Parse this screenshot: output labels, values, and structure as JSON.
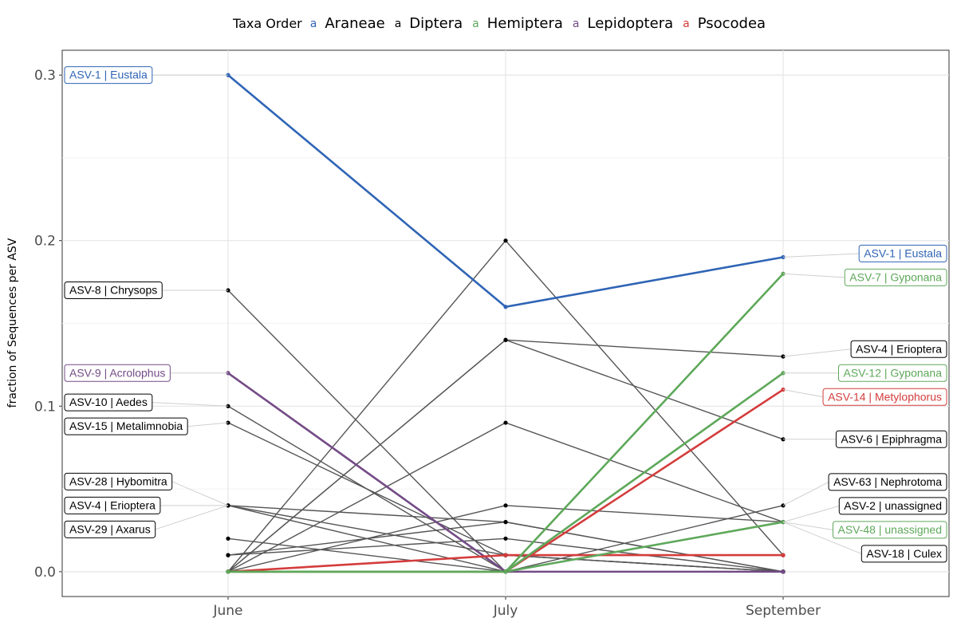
{
  "chart_data": {
    "type": "line",
    "x": [
      "June",
      "July",
      "September"
    ],
    "xlabel": "",
    "ylabel": "fraction of Sequences per ASV",
    "ylim": [
      -0.015,
      0.315
    ],
    "yticks": [
      0.0,
      0.1,
      0.2,
      0.3
    ],
    "ytick_labels": [
      "0.0",
      "0.1",
      "0.2",
      "0.3"
    ],
    "grid": true,
    "legend": {
      "title": "Taxa Order",
      "placement": "top",
      "key_glyph": "a",
      "entries": [
        {
          "name": "Araneae",
          "color": "#2f64b5"
        },
        {
          "name": "Diptera",
          "color": "#000000"
        },
        {
          "name": "Hemiptera",
          "color": "#5ea85a"
        },
        {
          "name": "Lepidoptera",
          "color": "#734b86"
        },
        {
          "name": "Psocodea",
          "color": "#d43c3c"
        }
      ]
    },
    "series": [
      {
        "id": "ASV-1 | Eustala",
        "order": "Araneae",
        "values": [
          0.3,
          0.16,
          0.19
        ]
      },
      {
        "id": "ASV-8 | Chrysops",
        "order": "Diptera",
        "values": [
          0.17,
          0.0,
          0.0
        ]
      },
      {
        "id": "ASV-9 | Acrolophus",
        "order": "Lepidoptera",
        "values": [
          0.12,
          0.0,
          0.0
        ]
      },
      {
        "id": "ASV-10 | Aedes",
        "order": "Diptera",
        "values": [
          0.1,
          0.0,
          0.0
        ]
      },
      {
        "id": "ASV-15 | Metalimnobia",
        "order": "Diptera",
        "values": [
          0.09,
          0.01,
          0.0
        ]
      },
      {
        "id": "ASV-28 | Hybomitra",
        "order": "Diptera",
        "values": [
          0.04,
          0.0,
          0.0
        ]
      },
      {
        "id": "ASV-4 | Erioptera",
        "order": "Diptera",
        "values": [
          0.04,
          0.03,
          0.0
        ]
      },
      {
        "id": "ASV-29 | Axarus",
        "order": "Diptera",
        "values": [
          0.04,
          0.01,
          0.0
        ]
      },
      {
        "id": "ASV-4 | Erioptera (II)",
        "order": "Diptera",
        "values": [
          0.0,
          0.14,
          0.13
        ]
      },
      {
        "id": "ASV-6 | Epiphragma",
        "order": "Diptera",
        "values": [
          0.0,
          0.14,
          0.08
        ]
      },
      {
        "id": "ASV-63 | Nephrotoma",
        "order": "Diptera",
        "values": [
          0.0,
          0.0,
          0.04
        ]
      },
      {
        "id": "ASV-2 | unassigned",
        "order": "Diptera",
        "values": [
          0.0,
          0.04,
          0.03
        ]
      },
      {
        "id": "ASV-18 | Culex",
        "order": "Diptera",
        "values": [
          0.0,
          0.09,
          0.03
        ]
      },
      {
        "id": "Diptera unlabeled 1",
        "order": "Diptera",
        "values": [
          0.0,
          0.2,
          0.01
        ]
      },
      {
        "id": "Diptera unlabeled 2",
        "order": "Diptera",
        "values": [
          0.02,
          0.0,
          0.0
        ]
      },
      {
        "id": "Diptera unlabeled 3",
        "order": "Diptera",
        "values": [
          0.01,
          0.03,
          0.0
        ]
      },
      {
        "id": "Diptera unlabeled 4",
        "order": "Diptera",
        "values": [
          0.01,
          0.02,
          0.0
        ]
      },
      {
        "id": "Diptera unlabeled 5",
        "order": "Diptera",
        "values": [
          0.0,
          0.01,
          0.0
        ]
      },
      {
        "id": "Diptera unlabeled 6",
        "order": "Diptera",
        "values": [
          0.0,
          0.0,
          0.0
        ]
      },
      {
        "id": "ASV-7 | Gyponana",
        "order": "Hemiptera",
        "values": [
          0.0,
          0.0,
          0.18
        ]
      },
      {
        "id": "ASV-12 | Gyponana",
        "order": "Hemiptera",
        "values": [
          0.0,
          0.0,
          0.12
        ]
      },
      {
        "id": "ASV-48 | unassigned",
        "order": "Hemiptera",
        "values": [
          0.0,
          0.0,
          0.03
        ]
      },
      {
        "id": "ASV-14 | Metylophorus",
        "order": "Psocodea",
        "values": [
          0.0,
          0.0,
          0.11
        ]
      },
      {
        "id": "Psocodea unlabeled",
        "order": "Psocodea",
        "values": [
          0.0,
          0.01,
          0.01
        ]
      }
    ],
    "labels": {
      "June": [
        {
          "text": "ASV-1 | Eustala",
          "order": "Araneae",
          "anchor": 0.3
        },
        {
          "text": "ASV-8 | Chrysops",
          "order": "Diptera",
          "anchor": 0.17
        },
        {
          "text": "ASV-9 | Acrolophus",
          "order": "Lepidoptera",
          "anchor": 0.12
        },
        {
          "text": "ASV-10 | Aedes",
          "order": "Diptera",
          "anchor": 0.1
        },
        {
          "text": "ASV-15 | Metalimnobia",
          "order": "Diptera",
          "anchor": 0.09
        },
        {
          "text": "ASV-28 | Hybomitra",
          "order": "Diptera",
          "anchor": 0.04
        },
        {
          "text": "ASV-4 | Erioptera",
          "order": "Diptera",
          "anchor": 0.04
        },
        {
          "text": "ASV-29 | Axarus",
          "order": "Diptera",
          "anchor": 0.04
        }
      ],
      "September": [
        {
          "text": "ASV-1 | Eustala",
          "order": "Araneae",
          "anchor": 0.19
        },
        {
          "text": "ASV-7 | Gyponana",
          "order": "Hemiptera",
          "anchor": 0.18
        },
        {
          "text": "ASV-4 | Erioptera",
          "order": "Diptera",
          "anchor": 0.13
        },
        {
          "text": "ASV-12 | Gyponana",
          "order": "Hemiptera",
          "anchor": 0.12
        },
        {
          "text": "ASV-14 | Metylophorus",
          "order": "Psocodea",
          "anchor": 0.11
        },
        {
          "text": "ASV-6 | Epiphragma",
          "order": "Diptera",
          "anchor": 0.08
        },
        {
          "text": "ASV-63 | Nephrotoma",
          "order": "Diptera",
          "anchor": 0.04
        },
        {
          "text": "ASV-2 | unassigned",
          "order": "Diptera",
          "anchor": 0.03
        },
        {
          "text": "ASV-48 | unassigned",
          "order": "Hemiptera",
          "anchor": 0.03
        },
        {
          "text": "ASV-18 | Culex",
          "order": "Diptera",
          "anchor": 0.03
        }
      ]
    }
  }
}
